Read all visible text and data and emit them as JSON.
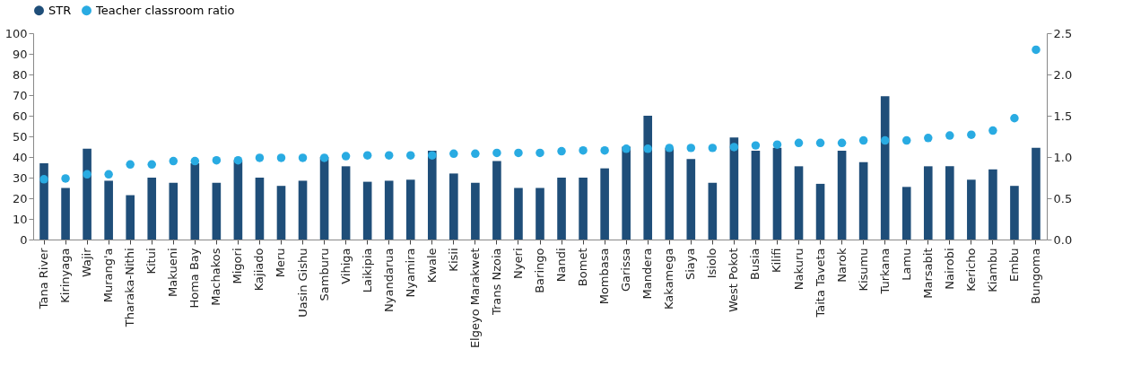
{
  "chart_data": {
    "type": "bar",
    "categories": [
      "Tana River",
      "Kirinyaga",
      "Wajir",
      "Murang'a",
      "Tharaka-Nithi",
      "Kitui",
      "Makueni",
      "Homa Bay",
      "Machakos",
      "Migori",
      "Kajiado",
      "Meru",
      "Uasin Gishu",
      "Samburu",
      "Vihiga",
      "Laikipia",
      "Nyandarua",
      "Nyamira",
      "Kwale",
      "Kisii",
      "Elgeyo Marakwet",
      "Trans Nzoia",
      "Nyeri",
      "Baringo",
      "Nandi",
      "Bomet",
      "Mombasa",
      "Garissa",
      "Mandera",
      "Kakamega",
      "Siaya",
      "Isiolo",
      "West Pokot",
      "Busia",
      "Kilifi",
      "Nakuru",
      "Taita Taveta",
      "Narok",
      "Kisumu",
      "Turkana",
      "Lamu",
      "Marsabit",
      "Nairobi",
      "Kericho",
      "Kiambu",
      "Embu",
      "Bungoma"
    ],
    "series": [
      {
        "name": "STR",
        "color": "#1f4e79",
        "values": [
          37,
          25,
          44,
          28.5,
          21.5,
          30,
          27.5,
          37,
          27.5,
          38.5,
          30,
          26,
          28.5,
          40,
          35.5,
          28,
          28.5,
          29,
          43,
          32,
          27.5,
          38,
          25,
          25,
          30,
          30,
          34.5,
          45,
          60,
          44.5,
          39,
          27.5,
          49.5,
          43,
          44.5,
          35.5,
          27,
          43,
          37.5,
          69.5,
          25.5,
          35.5,
          35.5,
          29,
          34,
          26,
          44.5
        ]
      },
      {
        "name": "Teacher classroom ratio",
        "type": "scatter",
        "axis": "y2",
        "color": "#29abe2",
        "values": [
          0.73,
          0.74,
          0.79,
          0.79,
          0.91,
          0.91,
          0.95,
          0.95,
          0.96,
          0.96,
          0.99,
          0.99,
          0.99,
          0.99,
          1.01,
          1.02,
          1.02,
          1.02,
          1.02,
          1.04,
          1.04,
          1.05,
          1.05,
          1.05,
          1.07,
          1.08,
          1.08,
          1.1,
          1.1,
          1.11,
          1.11,
          1.11,
          1.12,
          1.14,
          1.15,
          1.17,
          1.17,
          1.17,
          1.2,
          1.2,
          1.2,
          1.23,
          1.26,
          1.27,
          1.32,
          1.47,
          2.3
        ]
      }
    ],
    "ylim": [
      0,
      100
    ],
    "yticks": [
      0,
      10,
      20,
      30,
      40,
      50,
      60,
      70,
      80,
      90,
      100
    ],
    "y2lim": [
      0,
      2.5
    ],
    "y2ticks": [
      {
        "value": 0,
        "label": "0.0"
      },
      0.5,
      {
        "value": 1,
        "label": "1.0"
      },
      1.5,
      {
        "value": 2,
        "label": "2.0"
      },
      2.5
    ],
    "marker": "circle",
    "grid": false,
    "legend": "top"
  }
}
